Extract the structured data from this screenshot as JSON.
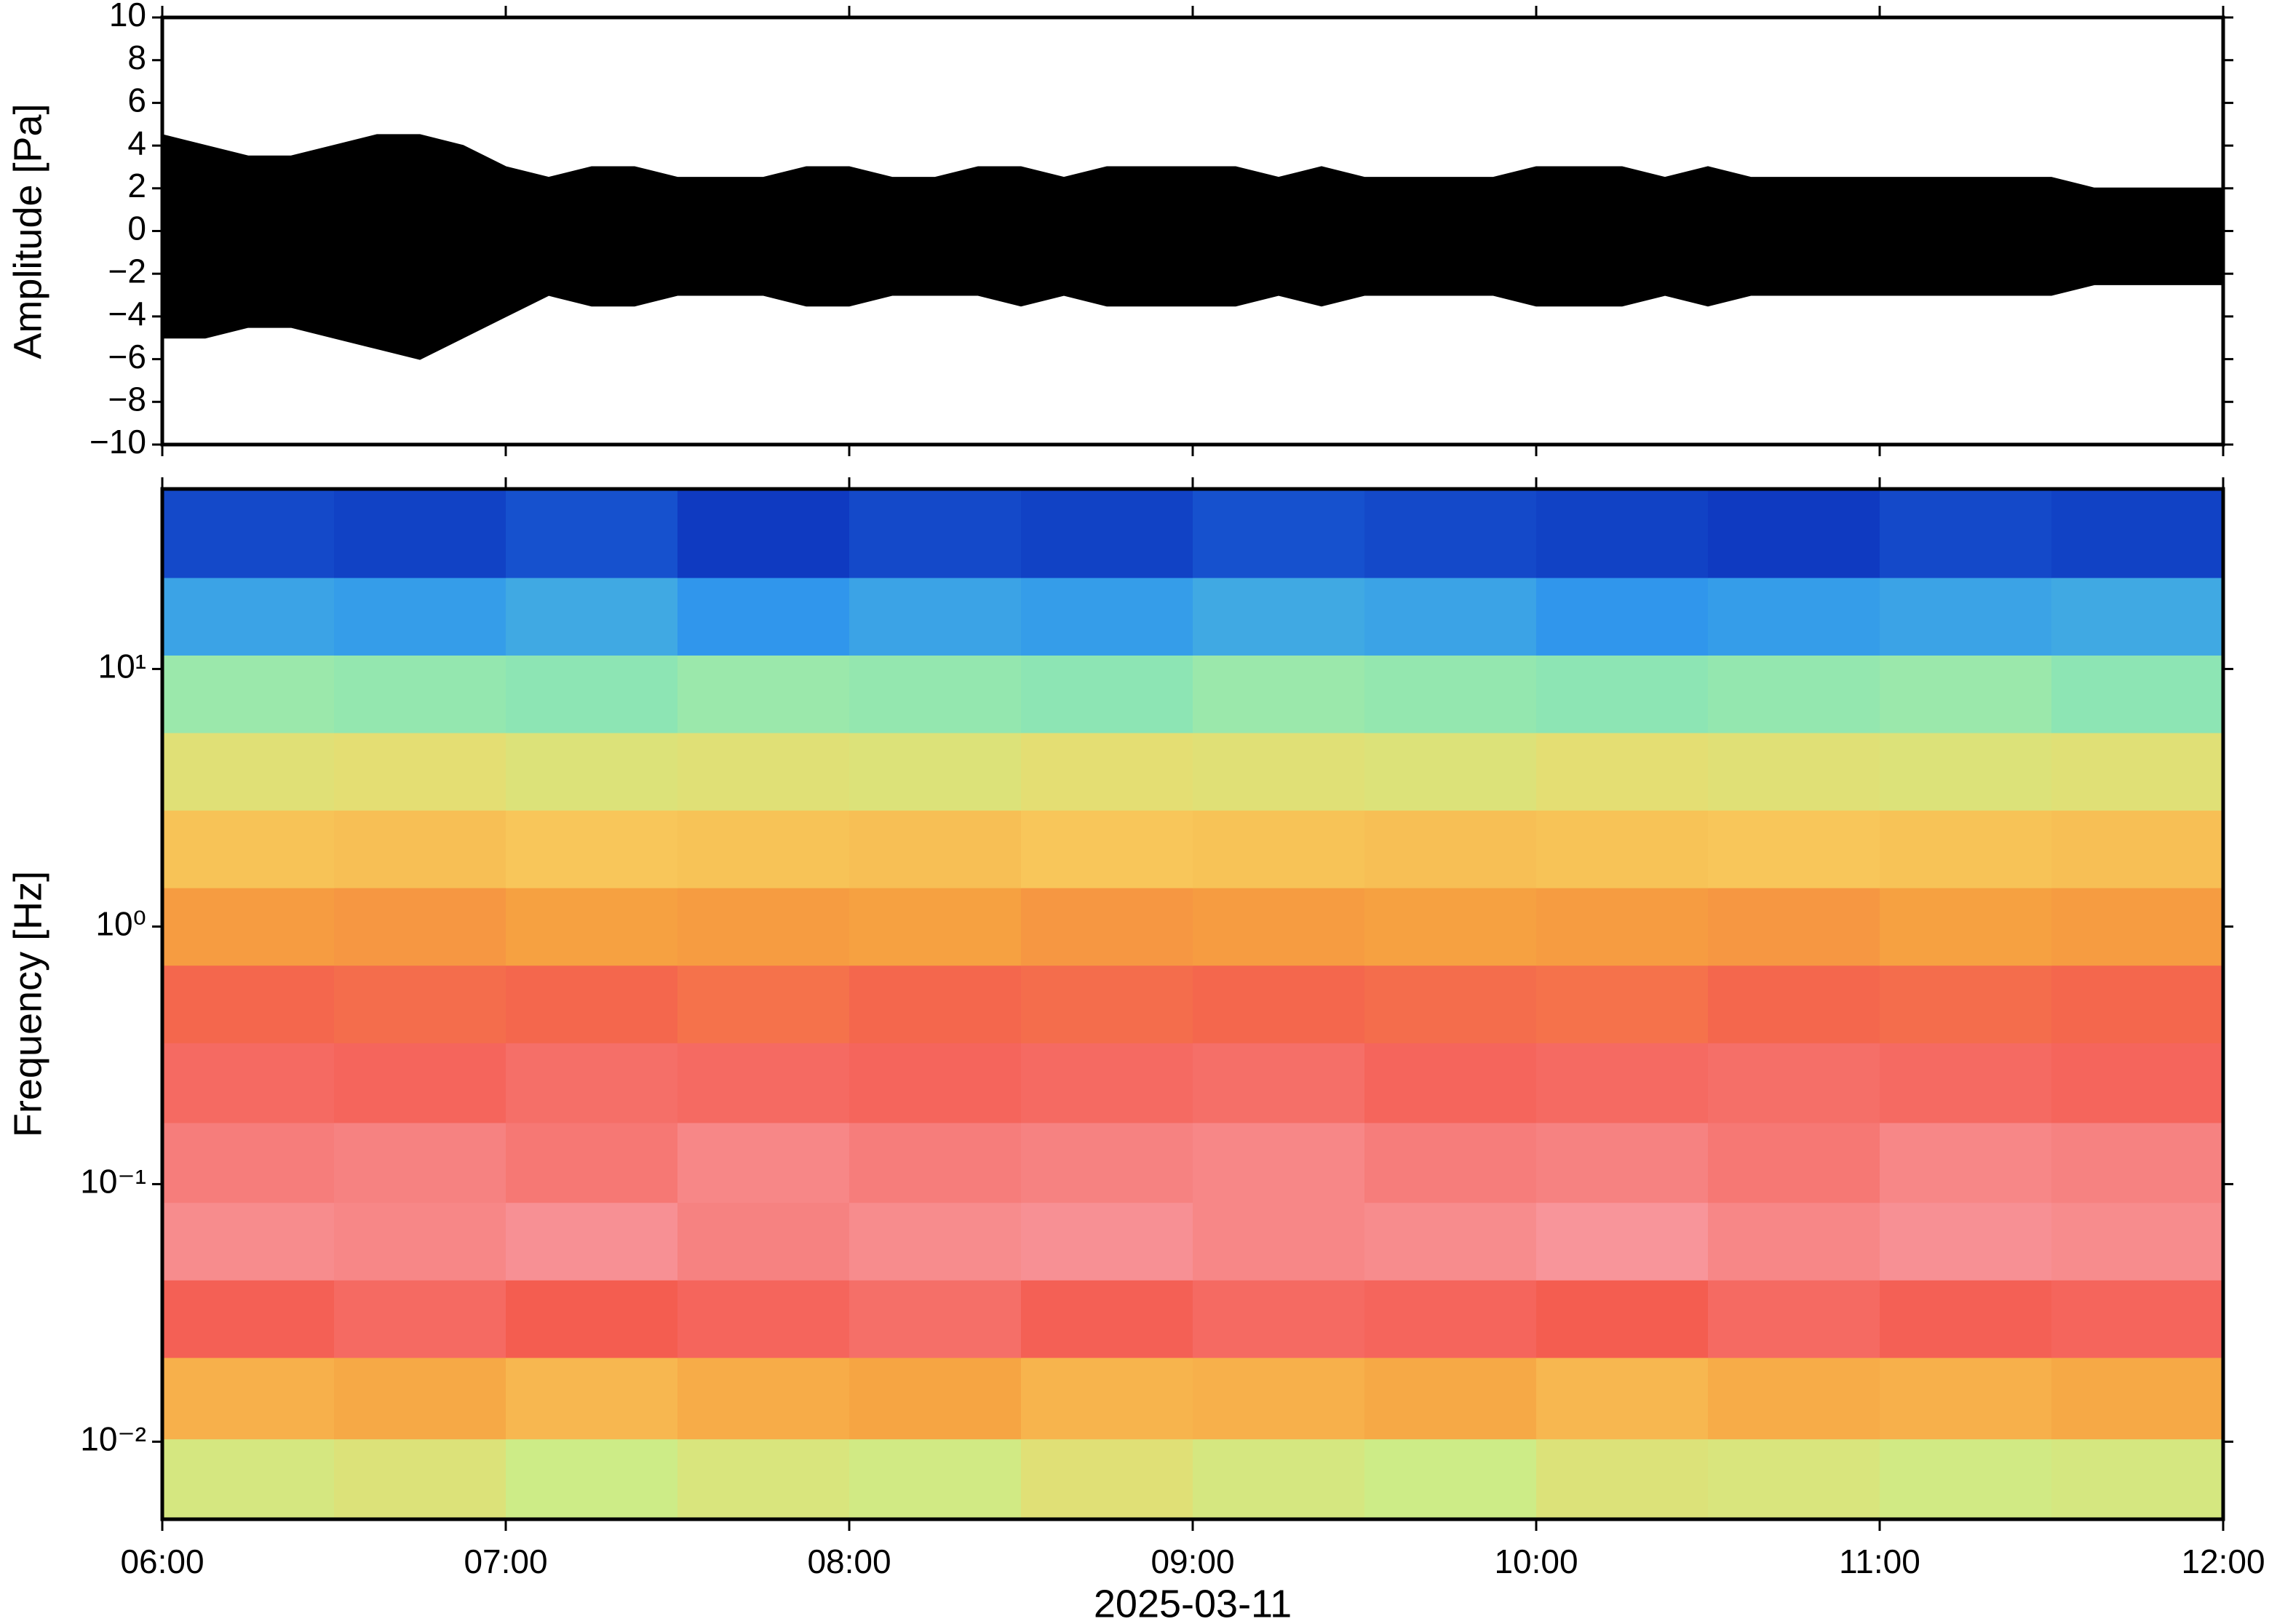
{
  "chart_data": [
    {
      "type": "waveform",
      "ylabel": "Amplitude [Pa]",
      "color": "#000000",
      "xlim": [
        6,
        12
      ],
      "ylim": [
        -10,
        10
      ],
      "yticks": [
        {
          "value": -10,
          "label": "−10"
        },
        {
          "value": -8,
          "label": "−8"
        },
        {
          "value": -6,
          "label": "−6"
        },
        {
          "value": -4,
          "label": "−4"
        },
        {
          "value": -2,
          "label": "−2"
        },
        0,
        2,
        4,
        6,
        8,
        10
      ],
      "x": [
        6,
        6.125,
        6.25,
        6.375,
        6.5,
        6.625,
        6.75,
        6.875,
        7,
        7.125,
        7.25,
        7.375,
        7.5,
        7.625,
        7.75,
        7.875,
        8,
        8.125,
        8.25,
        8.375,
        8.5,
        8.625,
        8.75,
        8.875,
        9,
        9.125,
        9.25,
        9.375,
        9.5,
        9.625,
        9.75,
        9.875,
        10,
        10.125,
        10.25,
        10.375,
        10.5,
        10.625,
        10.75,
        10.875,
        11,
        11.125,
        11.25,
        11.375,
        11.5,
        11.625,
        11.75,
        11.875,
        12
      ],
      "series": [
        {
          "name": "upper",
          "values": [
            4.5,
            4,
            3.5,
            3.5,
            4,
            4.5,
            4.5,
            4,
            3,
            2.5,
            3,
            3,
            2.5,
            2.5,
            2.5,
            3,
            3,
            2.5,
            2.5,
            3,
            3,
            2.5,
            3,
            3,
            3,
            3,
            2.5,
            3,
            2.5,
            2.5,
            2.5,
            2.5,
            3,
            3,
            3,
            2.5,
            3,
            2.5,
            2.5,
            2.5,
            2.5,
            2.5,
            2.5,
            2.5,
            2.5,
            2,
            2,
            2,
            2
          ]
        },
        {
          "name": "lower",
          "values": [
            -5,
            -5,
            -4.5,
            -4.5,
            -5,
            -5.5,
            -6,
            -5,
            -4,
            -3,
            -3.5,
            -3.5,
            -3,
            -3,
            -3,
            -3.5,
            -3.5,
            -3,
            -3,
            -3,
            -3.5,
            -3,
            -3.5,
            -3.5,
            -3.5,
            -3.5,
            -3,
            -3.5,
            -3,
            -3,
            -3,
            -3,
            -3.5,
            -3.5,
            -3.5,
            -3,
            -3.5,
            -3,
            -3,
            -3,
            -3,
            -3,
            -3,
            -3,
            -3,
            -2.5,
            -2.5,
            -2.5,
            -2.5
          ]
        }
      ]
    },
    {
      "type": "heatmap",
      "ylabel": "Frequency [Hz]",
      "xlabel": "2025-03-11",
      "xlim": [
        6,
        12
      ],
      "xticks": [
        {
          "value": 6,
          "label": "06:00"
        },
        {
          "value": 7,
          "label": "07:00"
        },
        {
          "value": 8,
          "label": "08:00"
        },
        {
          "value": 9,
          "label": "09:00"
        },
        {
          "value": 10,
          "label": "10:00"
        },
        {
          "value": 11,
          "label": "11:00"
        },
        {
          "value": 12,
          "label": "12:00"
        }
      ],
      "ylim": [
        0.005,
        50
      ],
      "log_y": true,
      "yticks": [
        {
          "value": 0.01,
          "label": "10⁻²"
        },
        {
          "value": 0.1,
          "label": "10⁻¹"
        },
        {
          "value": 1,
          "label": "10⁰"
        },
        {
          "value": 10,
          "label": "10¹"
        }
      ],
      "zlim": [
        0,
        90
      ],
      "colormap": [
        "#0a2ab8",
        "#2a8ff0",
        "#6fe0c8",
        "#c8f08c",
        "#f8d060",
        "#f6a040",
        "#f45c50",
        "#f89aa0"
      ],
      "x": [
        6.25,
        6.75,
        7.25,
        7.75,
        8.25,
        8.75,
        9.25,
        9.75,
        10.25,
        10.75,
        11.25,
        11.75
      ],
      "y": [
        0.007,
        0.015,
        0.03,
        0.06,
        0.12,
        0.25,
        0.5,
        1,
        2,
        4,
        8,
        16,
        32
      ],
      "z": [
        [
          42,
          44,
          40,
          43,
          41,
          45,
          42,
          40,
          44,
          43,
          41,
          42
        ],
        [
          60,
          62,
          58,
          61,
          63,
          59,
          60,
          62,
          58,
          61,
          60,
          62
        ],
        [
          78,
          80,
          77,
          79,
          81,
          78,
          80,
          79,
          77,
          80,
          78,
          79
        ],
        [
          87,
          86,
          88,
          85,
          87,
          88,
          86,
          87,
          89,
          86,
          88,
          87
        ],
        [
          84,
          85,
          83,
          86,
          84,
          85,
          86,
          84,
          85,
          83,
          86,
          85
        ],
        [
          80,
          79,
          81,
          80,
          79,
          80,
          81,
          79,
          80,
          81,
          80,
          79
        ],
        [
          75,
          74,
          75,
          73,
          75,
          74,
          75,
          74,
          73,
          75,
          74,
          75
        ],
        [
          65,
          66,
          64,
          65,
          64,
          66,
          65,
          64,
          65,
          66,
          64,
          65
        ],
        [
          55,
          56,
          54,
          55,
          56,
          54,
          55,
          56,
          55,
          54,
          55,
          56
        ],
        [
          45,
          46,
          44,
          45,
          44,
          46,
          45,
          44,
          46,
          45,
          44,
          45
        ],
        [
          32,
          31,
          30,
          32,
          31,
          30,
          32,
          31,
          30,
          31,
          32,
          30
        ],
        [
          16,
          15,
          17,
          14,
          16,
          15,
          17,
          16,
          14,
          15,
          16,
          17
        ],
        [
          4,
          3,
          5,
          2,
          4,
          3,
          5,
          4,
          3,
          2,
          4,
          3
        ]
      ]
    }
  ]
}
